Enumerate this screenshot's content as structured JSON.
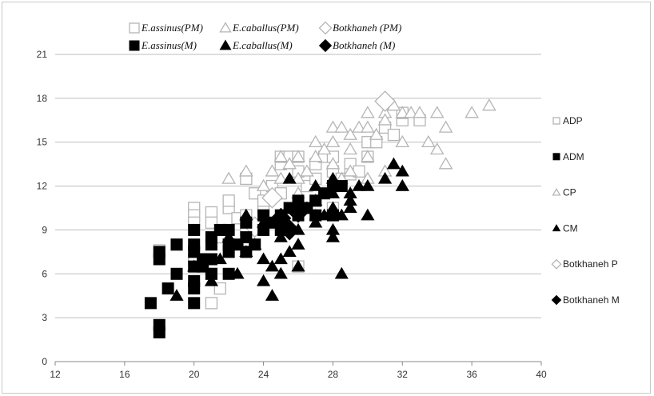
{
  "chart_data": {
    "type": "scatter",
    "title": "",
    "xlabel": "",
    "ylabel": "",
    "xlim": [
      12,
      40
    ],
    "ylim": [
      0,
      21
    ],
    "x_ticks": [
      "12",
      "16",
      "20",
      "24",
      "28",
      "32",
      "36",
      "40"
    ],
    "y_ticks": [
      "0",
      "3",
      "6",
      "9",
      "12",
      "15",
      "18",
      "21"
    ],
    "grid": "horizontal",
    "legends": {
      "top": [
        {
          "label": "E.assinus(PM)",
          "marker": "square-open"
        },
        {
          "label": "E.caballus(PM)",
          "marker": "triangle-open"
        },
        {
          "label": "Botkhaneh (PM)",
          "marker": "diamond-open"
        },
        {
          "label": "E.assinus(M)",
          "marker": "square-filled"
        },
        {
          "label": "E.caballus(M)",
          "marker": "triangle-filled"
        },
        {
          "label": "Botkhaneh  (M)",
          "marker": "diamond-filled"
        }
      ],
      "right": [
        {
          "label": "ADP",
          "marker": "square-open"
        },
        {
          "label": "ADM",
          "marker": "square-filled"
        },
        {
          "label": "CP",
          "marker": "triangle-open"
        },
        {
          "label": "CM",
          "marker": "triangle-filled"
        },
        {
          "label": "Botkhaneh P",
          "marker": "diamond-open"
        },
        {
          "label": "Botkhaneh M",
          "marker": "diamond-filled"
        }
      ]
    },
    "series": [
      {
        "name": "ADP",
        "marker": "square-open",
        "points": [
          [
            18,
            7.6
          ],
          [
            20,
            10.5
          ],
          [
            20,
            10
          ],
          [
            20,
            9.5
          ],
          [
            21,
            10.2
          ],
          [
            21,
            9.5
          ],
          [
            21.5,
            8.5
          ],
          [
            22,
            10.5
          ],
          [
            22,
            11
          ],
          [
            22.5,
            9.8
          ],
          [
            23,
            10
          ],
          [
            23,
            12.5
          ],
          [
            23.5,
            11.5
          ],
          [
            24,
            10.5
          ],
          [
            24.5,
            12
          ],
          [
            25,
            13.5
          ],
          [
            25,
            14
          ],
          [
            25.5,
            14
          ],
          [
            26,
            14
          ],
          [
            26,
            13
          ],
          [
            26.5,
            12
          ],
          [
            27,
            12.5
          ],
          [
            27,
            13.5
          ],
          [
            27.5,
            14
          ],
          [
            28,
            14
          ],
          [
            28,
            13
          ],
          [
            28.5,
            12.5
          ],
          [
            29,
            13.5
          ],
          [
            29,
            12.8
          ],
          [
            29.5,
            13
          ],
          [
            30,
            14
          ],
          [
            30,
            15
          ],
          [
            30.5,
            15
          ],
          [
            31,
            16
          ],
          [
            31.5,
            15.5
          ],
          [
            32,
            16.5
          ],
          [
            32,
            17
          ],
          [
            33,
            16.5
          ],
          [
            20,
            7
          ],
          [
            21,
            4
          ],
          [
            21.5,
            5
          ],
          [
            19,
            8
          ],
          [
            21,
            6
          ],
          [
            22,
            8
          ],
          [
            23,
            9
          ],
          [
            24,
            11
          ],
          [
            25,
            11.5
          ],
          [
            26,
            6.5
          ],
          [
            27,
            11
          ],
          [
            28,
            10.5
          ]
        ]
      },
      {
        "name": "ADM",
        "marker": "square-filled",
        "points": [
          [
            17.5,
            4
          ],
          [
            18,
            2.5
          ],
          [
            18,
            2
          ],
          [
            18,
            7
          ],
          [
            18,
            7.5
          ],
          [
            18.5,
            5
          ],
          [
            19,
            6
          ],
          [
            19,
            8
          ],
          [
            20,
            4
          ],
          [
            20,
            5
          ],
          [
            20,
            5.5
          ],
          [
            20,
            6.5
          ],
          [
            20,
            7.5
          ],
          [
            20,
            8
          ],
          [
            20,
            9
          ],
          [
            20.5,
            7
          ],
          [
            20.5,
            6.5
          ],
          [
            21,
            8.5
          ],
          [
            21,
            8
          ],
          [
            21,
            7
          ],
          [
            21,
            6
          ],
          [
            21.5,
            9
          ],
          [
            22,
            9
          ],
          [
            22,
            8
          ],
          [
            22,
            7.5
          ],
          [
            22,
            6
          ],
          [
            22.5,
            8
          ],
          [
            23,
            9.5
          ],
          [
            23,
            8.5
          ],
          [
            23,
            7.5
          ],
          [
            23.5,
            8
          ],
          [
            24,
            9
          ],
          [
            24,
            10
          ],
          [
            24.5,
            9.5
          ],
          [
            25,
            10
          ],
          [
            25,
            9
          ],
          [
            25.5,
            10.5
          ],
          [
            26,
            11
          ],
          [
            26,
            10
          ],
          [
            26.5,
            10.5
          ],
          [
            27,
            11
          ],
          [
            27,
            10
          ],
          [
            27.5,
            11.5
          ],
          [
            28,
            12
          ],
          [
            28,
            10
          ],
          [
            28.5,
            12
          ]
        ]
      },
      {
        "name": "CP",
        "marker": "triangle-open",
        "points": [
          [
            22,
            12.5
          ],
          [
            23,
            13
          ],
          [
            24,
            12
          ],
          [
            24.5,
            13
          ],
          [
            25,
            14
          ],
          [
            25.5,
            13.5
          ],
          [
            26,
            14
          ],
          [
            26,
            12.5
          ],
          [
            26.5,
            13
          ],
          [
            27,
            14
          ],
          [
            27,
            15
          ],
          [
            27.5,
            14.5
          ],
          [
            28,
            16
          ],
          [
            28,
            15
          ],
          [
            28.5,
            16
          ],
          [
            29,
            15.5
          ],
          [
            29,
            14.5
          ],
          [
            29.5,
            16
          ],
          [
            30,
            17
          ],
          [
            30,
            16
          ],
          [
            30.5,
            15.5
          ],
          [
            31,
            17
          ],
          [
            31,
            16.5
          ],
          [
            31.5,
            17.5
          ],
          [
            32,
            17
          ],
          [
            32,
            15
          ],
          [
            32.5,
            17
          ],
          [
            33,
            17
          ],
          [
            33.5,
            15
          ],
          [
            34,
            17
          ],
          [
            34,
            14.5
          ],
          [
            34.5,
            16
          ],
          [
            34.5,
            13.5
          ],
          [
            36,
            17
          ],
          [
            37,
            17.5
          ],
          [
            28,
            13.5
          ],
          [
            29,
            13
          ],
          [
            30,
            12.5
          ],
          [
            31,
            13
          ],
          [
            32,
            12
          ],
          [
            27,
            10
          ],
          [
            26,
            11.5
          ],
          [
            25,
            12.5
          ],
          [
            28.5,
            12.5
          ],
          [
            30,
            14
          ]
        ]
      },
      {
        "name": "CM",
        "marker": "triangle-filled",
        "points": [
          [
            19,
            4.5
          ],
          [
            20,
            6.5
          ],
          [
            21,
            5.5
          ],
          [
            21.5,
            7
          ],
          [
            22,
            8.5
          ],
          [
            22.5,
            6
          ],
          [
            23,
            7.5
          ],
          [
            23.5,
            8
          ],
          [
            24,
            5.5
          ],
          [
            24,
            7
          ],
          [
            24.5,
            4.5
          ],
          [
            24.5,
            6.5
          ],
          [
            25,
            6
          ],
          [
            25,
            7
          ],
          [
            25,
            8.5
          ],
          [
            25.5,
            7.5
          ],
          [
            25.5,
            12.5
          ],
          [
            26,
            9
          ],
          [
            26,
            8
          ],
          [
            26,
            6.5
          ],
          [
            26.5,
            10.5
          ],
          [
            27,
            9.5
          ],
          [
            27,
            11
          ],
          [
            27.5,
            10
          ],
          [
            28,
            11.5
          ],
          [
            28,
            10.5
          ],
          [
            28,
            9
          ],
          [
            28.5,
            10
          ],
          [
            28.5,
            6
          ],
          [
            29,
            11
          ],
          [
            29,
            10.5
          ],
          [
            29.5,
            12
          ],
          [
            30,
            12
          ],
          [
            30,
            10
          ],
          [
            31,
            12.5
          ],
          [
            31.5,
            13.5
          ],
          [
            32,
            13
          ],
          [
            32,
            12
          ],
          [
            23,
            10
          ],
          [
            24,
            9.5
          ],
          [
            26,
            10.5
          ],
          [
            27,
            12
          ],
          [
            28,
            12.5
          ],
          [
            28,
            8.5
          ],
          [
            29,
            11.5
          ]
        ]
      },
      {
        "name": "Botkhaneh P",
        "marker": "diamond-open",
        "points": [
          [
            31,
            17.8
          ],
          [
            23.5,
            9.2
          ],
          [
            24.5,
            11.2
          ]
        ]
      },
      {
        "name": "Botkhaneh M",
        "marker": "diamond-filled",
        "points": [
          [
            25,
            9.8
          ],
          [
            25.5,
            9
          ],
          [
            26,
            10.2
          ]
        ]
      }
    ]
  }
}
